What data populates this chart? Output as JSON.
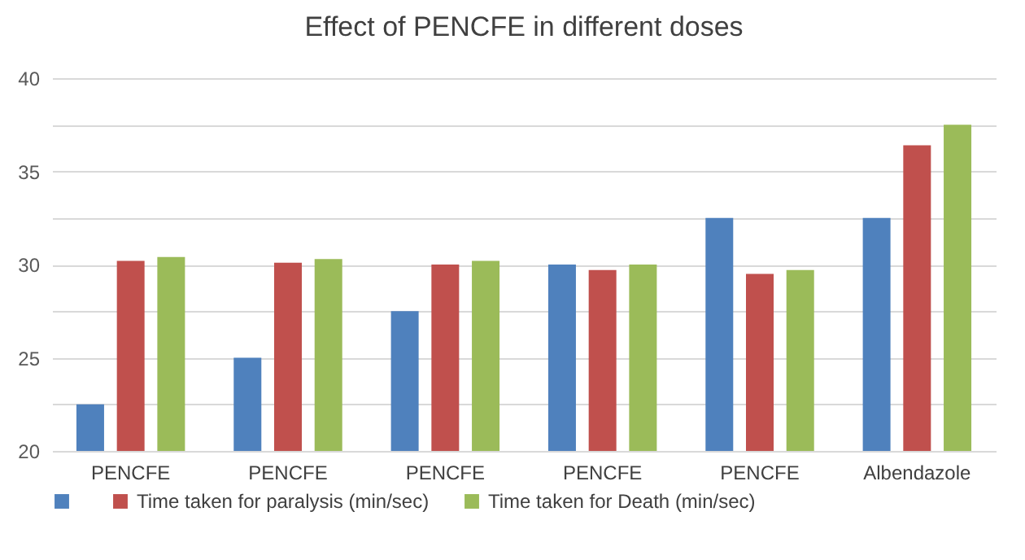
{
  "chart_data": {
    "type": "bar",
    "title": "Effect of PENCFE in different doses",
    "categories": [
      "PENCFE",
      "PENCFE",
      "PENCFE",
      "PENCFE",
      "PENCFE",
      "Albendazole"
    ],
    "series": [
      {
        "color": "#4f81bd",
        "values": [
          22.5,
          25.0,
          27.5,
          30.0,
          32.5,
          32.5
        ]
      },
      {
        "name": "Time taken for paralysis (min/sec)",
        "color": "#c0504d",
        "values": [
          30.2,
          30.1,
          30.0,
          29.7,
          29.5,
          36.4
        ]
      },
      {
        "name": "Time taken for Death (min/sec)",
        "color": "#9bbb59",
        "values": [
          30.4,
          30.3,
          30.2,
          30.0,
          29.7,
          37.5
        ]
      }
    ],
    "ylim": [
      20,
      40
    ],
    "yticks": [
      20,
      {
        "value": 22.5,
        "label": null
      },
      25,
      {
        "value": 27.5,
        "label": null
      },
      30,
      {
        "value": 32.5,
        "label": null
      },
      35,
      {
        "value": 37.5,
        "label": null
      },
      40
    ],
    "grid": "y",
    "legend": "bottom"
  }
}
